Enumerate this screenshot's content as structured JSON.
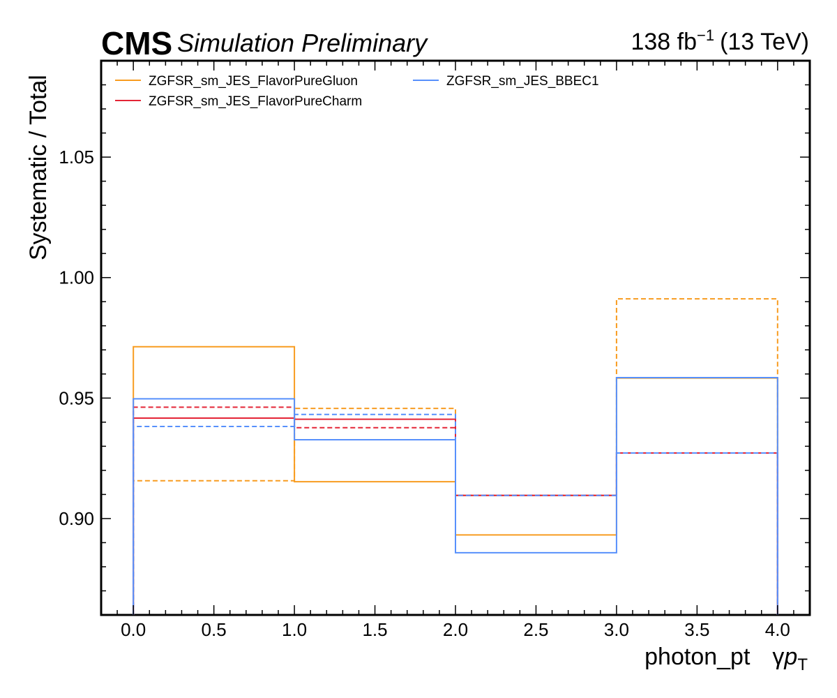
{
  "header": {
    "experiment": "CMS",
    "status": "Simulation Preliminary",
    "lumi_value": "138 fb",
    "lumi_exp": "−1",
    "lumi_energy": "(13 TeV)"
  },
  "colors": {
    "gluon": "#f89c20",
    "charm": "#e42536",
    "bbec1": "#5790fc",
    "frame": "#000000"
  },
  "chart_data": {
    "type": "line",
    "style": "step-histogram",
    "xlabel_main": "photon_pt",
    "xlabel_symbol": "γ",
    "xlabel_p": "p",
    "xlabel_sub": "T",
    "ylabel": "Systematic / Total",
    "xlim": [
      -0.2,
      4.2
    ],
    "ylim": [
      0.86,
      1.09
    ],
    "x_ticks": [
      "0.0",
      "0.5",
      "1.0",
      "1.5",
      "2.0",
      "2.5",
      "3.0",
      "3.5",
      "4.0"
    ],
    "y_ticks": [
      "0.90",
      "0.95",
      "1.00",
      "1.05"
    ],
    "bin_edges": [
      0,
      1,
      2,
      3,
      4
    ],
    "legend_position": "top-left",
    "series": [
      {
        "name": "ZGFSR_sm_JES_FlavorPureGluon",
        "color_key": "gluon",
        "variation": "up",
        "linestyle": "solid",
        "values": [
          0.9713,
          0.9153,
          0.8932,
          0.9583
        ]
      },
      {
        "name": "ZGFSR_sm_JES_FlavorPureGluon",
        "color_key": "gluon",
        "variation": "down",
        "linestyle": "dashed",
        "values": [
          0.9157,
          0.9457,
          0.9096,
          0.9912
        ]
      },
      {
        "name": "ZGFSR_sm_JES_FlavorPureCharm",
        "color_key": "charm",
        "variation": "up",
        "linestyle": "solid",
        "values": [
          0.9417,
          0.9412,
          0.9096,
          0.9272
        ]
      },
      {
        "name": "ZGFSR_sm_JES_FlavorPureCharm",
        "color_key": "charm",
        "variation": "down",
        "linestyle": "dashed",
        "values": [
          0.9462,
          0.9377,
          0.9096,
          0.9272
        ]
      },
      {
        "name": "ZGFSR_sm_JES_BBEC1",
        "color_key": "bbec1",
        "variation": "up",
        "linestyle": "solid",
        "values": [
          0.9497,
          0.9327,
          0.8858,
          0.9585
        ]
      },
      {
        "name": "ZGFSR_sm_JES_BBEC1",
        "color_key": "bbec1",
        "variation": "down",
        "linestyle": "dashed",
        "values": [
          0.9382,
          0.9432,
          0.9096,
          0.9272
        ]
      }
    ],
    "legend": [
      {
        "label": "ZGFSR_sm_JES_FlavorPureGluon",
        "color_key": "gluon"
      },
      {
        "label": "ZGFSR_sm_JES_FlavorPureCharm",
        "color_key": "charm"
      },
      {
        "label": "ZGFSR_sm_JES_BBEC1",
        "color_key": "bbec1"
      }
    ]
  }
}
